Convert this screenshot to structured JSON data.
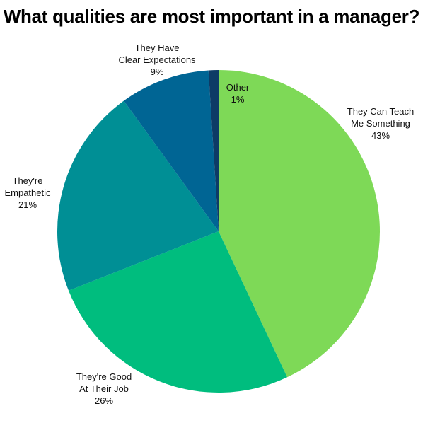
{
  "chart_data": {
    "type": "pie",
    "title": "What qualities are most important in a manager?",
    "slices": [
      {
        "label_lines": [
          "They Can Teach",
          "Me Something"
        ],
        "value": 43,
        "value_label": "43%",
        "color": "#7ed957"
      },
      {
        "label_lines": [
          "They're Good",
          "At Their Job"
        ],
        "value": 26,
        "value_label": "26%",
        "color": "#00bd7e"
      },
      {
        "label_lines": [
          "They're",
          "Empathetic"
        ],
        "value": 21,
        "value_label": "21%",
        "color": "#008f95"
      },
      {
        "label_lines": [
          "They Have",
          "Clear Expectations"
        ],
        "value": 9,
        "value_label": "9%",
        "color": "#006594"
      },
      {
        "label_lines": [
          "Other"
        ],
        "value": 1,
        "value_label": "1%",
        "color": "#0d3b66"
      }
    ],
    "start": "top",
    "direction": "clockwise",
    "legend": "none"
  }
}
